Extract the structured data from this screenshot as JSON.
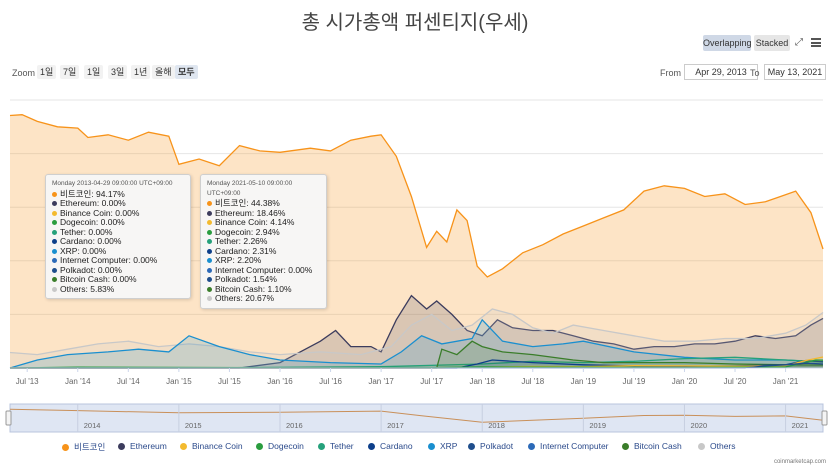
{
  "page": {
    "title": "총 시가총액 퍼센티지(우세)"
  },
  "controls": {
    "overlapping": "Overlapping",
    "stacked": "Stacked",
    "zoom_label": "Zoom",
    "zoom_options": [
      "1일",
      "7일",
      "1일",
      "3일",
      "1년",
      "올해",
      "모두"
    ],
    "from_label": "From",
    "from_value": "Apr 29, 2013",
    "to_label": "To",
    "to_value": "May 13, 2021"
  },
  "tooltips": [
    {
      "header": "Monday 2013-04-29 09:00:00 UTC+09:00",
      "rows": [
        {
          "label": "비트코인",
          "value": "94.17%",
          "color": "#f7931a"
        },
        {
          "label": "Ethereum",
          "value": "0.00%",
          "color": "#3c3c5d"
        },
        {
          "label": "Binance Coin",
          "value": "0.00%",
          "color": "#f3ba2f"
        },
        {
          "label": "Dogecoin",
          "value": "0.00%",
          "color": "#2a9d3f"
        },
        {
          "label": "Tether",
          "value": "0.00%",
          "color": "#26a17b"
        },
        {
          "label": "Cardano",
          "value": "0.00%",
          "color": "#0d3f8a"
        },
        {
          "label": "XRP",
          "value": "0.00%",
          "color": "#1a8fcf"
        },
        {
          "label": "Internet Computer",
          "value": "0.00%",
          "color": "#2c6ab8"
        },
        {
          "label": "Polkadot",
          "value": "0.00%",
          "color": "#1f4e8c"
        },
        {
          "label": "Bitcoin Cash",
          "value": "0.00%",
          "color": "#3a7d2a"
        },
        {
          "label": "Others",
          "value": "5.83%",
          "color": "#c8c8c8"
        }
      ]
    },
    {
      "header": "Monday 2021-05-10 09:00:00 UTC+09:00",
      "rows": [
        {
          "label": "비트코인",
          "value": "44.38%",
          "color": "#f7931a"
        },
        {
          "label": "Ethereum",
          "value": "18.46%",
          "color": "#3c3c5d"
        },
        {
          "label": "Binance Coin",
          "value": "4.14%",
          "color": "#f3ba2f"
        },
        {
          "label": "Dogecoin",
          "value": "2.94%",
          "color": "#2a9d3f"
        },
        {
          "label": "Tether",
          "value": "2.26%",
          "color": "#26a17b"
        },
        {
          "label": "Cardano",
          "value": "2.31%",
          "color": "#0d3f8a"
        },
        {
          "label": "XRP",
          "value": "2.20%",
          "color": "#1a8fcf"
        },
        {
          "label": "Internet Computer",
          "value": "0.00%",
          "color": "#2c6ab8"
        },
        {
          "label": "Polkadot",
          "value": "1.54%",
          "color": "#1f4e8c"
        },
        {
          "label": "Bitcoin Cash",
          "value": "1.10%",
          "color": "#3a7d2a"
        },
        {
          "label": "Others",
          "value": "20.67%",
          "color": "#c8c8c8"
        }
      ]
    }
  ],
  "navigator_labels": [
    "2014",
    "2015",
    "2016",
    "2017",
    "2018",
    "2019",
    "2020",
    "2021"
  ],
  "credit": "coinmarketcap.com",
  "chart_data": {
    "type": "area",
    "x_ticks": [
      "Jul '13",
      "Jan '14",
      "Jul '14",
      "Jan '15",
      "Jul '15",
      "Jan '16",
      "Jul '16",
      "Jan '17",
      "Jul '17",
      "Jan '18",
      "Jul '18",
      "Jan '19",
      "Jul '19",
      "Jan '20",
      "Jul '20",
      "Jan '21"
    ],
    "x_tick_dates": [
      2013.5,
      2014.0,
      2014.5,
      2015.0,
      2015.5,
      2016.0,
      2016.5,
      2017.0,
      2017.5,
      2018.0,
      2018.5,
      2019.0,
      2019.5,
      2020.0,
      2020.5,
      2021.0
    ],
    "xlim": [
      2013.33,
      2021.37
    ],
    "ylim": [
      0,
      100
    ],
    "series": [
      {
        "name": "비트코인",
        "color": "#f7931a",
        "fill": "rgba(247,147,26,0.25)",
        "x": [
          2013.33,
          2013.45,
          2013.6,
          2013.8,
          2014.0,
          2014.1,
          2014.3,
          2014.5,
          2014.7,
          2014.9,
          2015.0,
          2015.2,
          2015.4,
          2015.6,
          2015.8,
          2016.0,
          2016.3,
          2016.5,
          2016.7,
          2016.9,
          2017.0,
          2017.15,
          2017.3,
          2017.45,
          2017.55,
          2017.65,
          2017.75,
          2017.85,
          2017.95,
          2018.05,
          2018.2,
          2018.4,
          2018.6,
          2018.8,
          2019.0,
          2019.2,
          2019.4,
          2019.6,
          2019.8,
          2020.0,
          2020.2,
          2020.4,
          2020.6,
          2020.8,
          2020.95,
          2021.1,
          2021.25,
          2021.37
        ],
        "y": [
          94.2,
          94.5,
          92,
          90,
          89.5,
          86,
          87,
          85,
          88,
          86.5,
          76,
          78,
          75.5,
          83,
          81,
          80.5,
          82,
          81,
          85,
          86.5,
          87,
          79,
          64,
          45,
          51,
          47,
          59,
          55,
          38,
          34,
          37,
          43,
          46,
          50,
          53,
          56,
          59,
          66,
          68,
          67,
          64,
          65,
          61,
          62,
          64,
          66,
          58,
          44.4
        ]
      },
      {
        "name": "Ethereum",
        "color": "#3c3c5d",
        "fill": "rgba(60,60,93,0.18)",
        "x": [
          2013.33,
          2015.6,
          2016.0,
          2016.2,
          2016.4,
          2016.55,
          2016.7,
          2016.9,
          2017.0,
          2017.15,
          2017.3,
          2017.45,
          2017.55,
          2017.7,
          2017.85,
          2018.0,
          2018.15,
          2018.3,
          2018.5,
          2018.7,
          2018.9,
          2019.1,
          2019.3,
          2019.5,
          2019.7,
          2019.9,
          2020.1,
          2020.3,
          2020.5,
          2020.7,
          2020.9,
          2021.1,
          2021.25,
          2021.37
        ],
        "y": [
          0,
          0,
          2,
          6,
          10,
          14,
          8,
          8,
          6,
          18,
          27,
          22,
          25,
          20,
          14,
          12,
          18,
          15,
          14,
          14,
          12,
          10,
          9,
          7,
          8,
          8,
          9,
          9,
          10,
          12,
          11,
          12,
          16,
          18.5
        ]
      },
      {
        "name": "Others",
        "color": "#c8c8c8",
        "fill": "rgba(200,200,200,0.2)",
        "x": [
          2013.33,
          2013.6,
          2013.9,
          2014.2,
          2014.5,
          2014.8,
          2015.1,
          2015.4,
          2015.7,
          2016.0,
          2016.4,
          2016.8,
          2017.1,
          2017.3,
          2017.5,
          2017.7,
          2017.9,
          2018.1,
          2018.3,
          2018.5,
          2018.7,
          2018.9,
          2019.2,
          2019.5,
          2019.8,
          2020.1,
          2020.4,
          2020.7,
          2021.0,
          2021.2,
          2021.37
        ],
        "y": [
          5.8,
          5,
          7,
          9,
          10,
          8,
          9,
          8,
          6,
          5,
          6,
          5,
          8,
          16,
          20,
          14,
          16,
          22,
          20,
          15,
          13,
          16,
          14,
          12,
          10,
          10,
          11,
          11,
          13,
          16,
          20.7
        ]
      },
      {
        "name": "XRP",
        "color": "#1a8fcf",
        "fill": "rgba(26,143,207,0.18)",
        "x": [
          2013.33,
          2013.6,
          2013.9,
          2014.3,
          2014.6,
          2014.9,
          2015.1,
          2015.4,
          2015.7,
          2016.0,
          2016.5,
          2017.0,
          2017.2,
          2017.4,
          2017.6,
          2017.9,
          2018.0,
          2018.2,
          2018.5,
          2018.8,
          2019.0,
          2019.5,
          2020.0,
          2020.5,
          2021.0,
          2021.37
        ],
        "y": [
          0,
          3,
          5,
          6,
          7,
          6,
          12,
          8,
          5,
          3,
          2,
          1.5,
          6,
          12,
          9,
          11,
          18,
          10,
          8,
          9,
          10,
          6,
          4,
          3,
          3,
          2.2
        ]
      },
      {
        "name": "Tether",
        "color": "#26a17b",
        "fill": "rgba(38,161,123,0.15)",
        "x": [
          2013.33,
          2015.0,
          2017.0,
          2018.0,
          2018.5,
          2019.0,
          2019.5,
          2020.0,
          2020.5,
          2021.0,
          2021.37
        ],
        "y": [
          0,
          0,
          0.5,
          1.5,
          2.5,
          2,
          2.5,
          3.5,
          4,
          3,
          2.3
        ]
      },
      {
        "name": "Bitcoin Cash",
        "color": "#3a7d2a",
        "fill": "rgba(58,125,42,0.15)",
        "x": [
          2013.33,
          2017.55,
          2017.6,
          2017.75,
          2017.9,
          2018.0,
          2018.2,
          2018.5,
          2018.9,
          2019.2,
          2019.6,
          2020.0,
          2020.5,
          2021.0,
          2021.37
        ],
        "y": [
          0,
          0,
          7,
          5,
          10,
          8,
          6,
          5,
          3,
          2,
          2,
          2,
          1.5,
          1.2,
          1.1
        ]
      },
      {
        "name": "Cardano",
        "color": "#0d3f8a",
        "fill": "rgba(13,63,138,0.12)",
        "x": [
          2013.33,
          2017.75,
          2017.95,
          2018.1,
          2018.5,
          2019.0,
          2019.5,
          2020.0,
          2020.5,
          2021.0,
          2021.2,
          2021.37
        ],
        "y": [
          0,
          0,
          1.5,
          3,
          2,
          1.2,
          0.8,
          0.6,
          0.8,
          1.2,
          2.8,
          2.3
        ]
      },
      {
        "name": "Binance Coin",
        "color": "#f3ba2f",
        "fill": "rgba(243,186,47,0.12)",
        "x": [
          2013.33,
          2017.6,
          2018.0,
          2018.5,
          2019.0,
          2019.5,
          2020.0,
          2020.5,
          2021.0,
          2021.2,
          2021.37
        ],
        "y": [
          0,
          0,
          0.3,
          0.6,
          0.5,
          0.9,
          0.8,
          0.7,
          0.8,
          2.8,
          4.1
        ]
      },
      {
        "name": "Dogecoin",
        "color": "#2a9d3f",
        "fill": "rgba(42,157,63,0.12)",
        "x": [
          2013.33,
          2014.0,
          2016.0,
          2017.5,
          2018.0,
          2019.0,
          2020.0,
          2021.0,
          2021.1,
          2021.3,
          2021.37
        ],
        "y": [
          0,
          0.3,
          0.1,
          0.2,
          0.4,
          0.3,
          0.2,
          0.4,
          1.2,
          3.0,
          2.9
        ]
      },
      {
        "name": "Polkadot",
        "color": "#1f4e8c",
        "fill": "rgba(31,78,140,0.1)",
        "x": [
          2013.33,
          2020.6,
          2020.8,
          2021.0,
          2021.2,
          2021.37
        ],
        "y": [
          0,
          0,
          0.8,
          1.2,
          1.8,
          1.5
        ]
      },
      {
        "name": "Internet Computer",
        "color": "#2c6ab8",
        "fill": "rgba(44,106,184,0.1)",
        "x": [
          2013.33,
          2021.35,
          2021.37
        ],
        "y": [
          0,
          0,
          0
        ]
      }
    ],
    "navigator": {
      "x": [
        2013.33,
        2014.0,
        2015.0,
        2016.0,
        2017.0,
        2017.4,
        2018.0,
        2018.5,
        2019.0,
        2019.6,
        2020.0,
        2020.5,
        2021.0,
        2021.37
      ],
      "y": [
        94,
        88,
        78,
        81,
        86,
        65,
        35,
        44,
        53,
        66,
        67,
        62,
        64,
        44
      ]
    },
    "legend": {
      "placement": "bottom",
      "items": [
        {
          "label": "비트코인",
          "color": "#f7931a"
        },
        {
          "label": "Ethereum",
          "color": "#3c3c5d"
        },
        {
          "label": "Binance Coin",
          "color": "#f3ba2f"
        },
        {
          "label": "Dogecoin",
          "color": "#2a9d3f"
        },
        {
          "label": "Tether",
          "color": "#26a17b"
        },
        {
          "label": "Cardano",
          "color": "#0d3f8a"
        },
        {
          "label": "XRP",
          "color": "#1a8fcf"
        },
        {
          "label": "Polkadot",
          "color": "#1f4e8c"
        },
        {
          "label": "Internet Computer",
          "color": "#2c6ab8"
        },
        {
          "label": "Bitcoin Cash",
          "color": "#3a7d2a"
        },
        {
          "label": "Others",
          "color": "#c8c8c8"
        }
      ]
    }
  }
}
